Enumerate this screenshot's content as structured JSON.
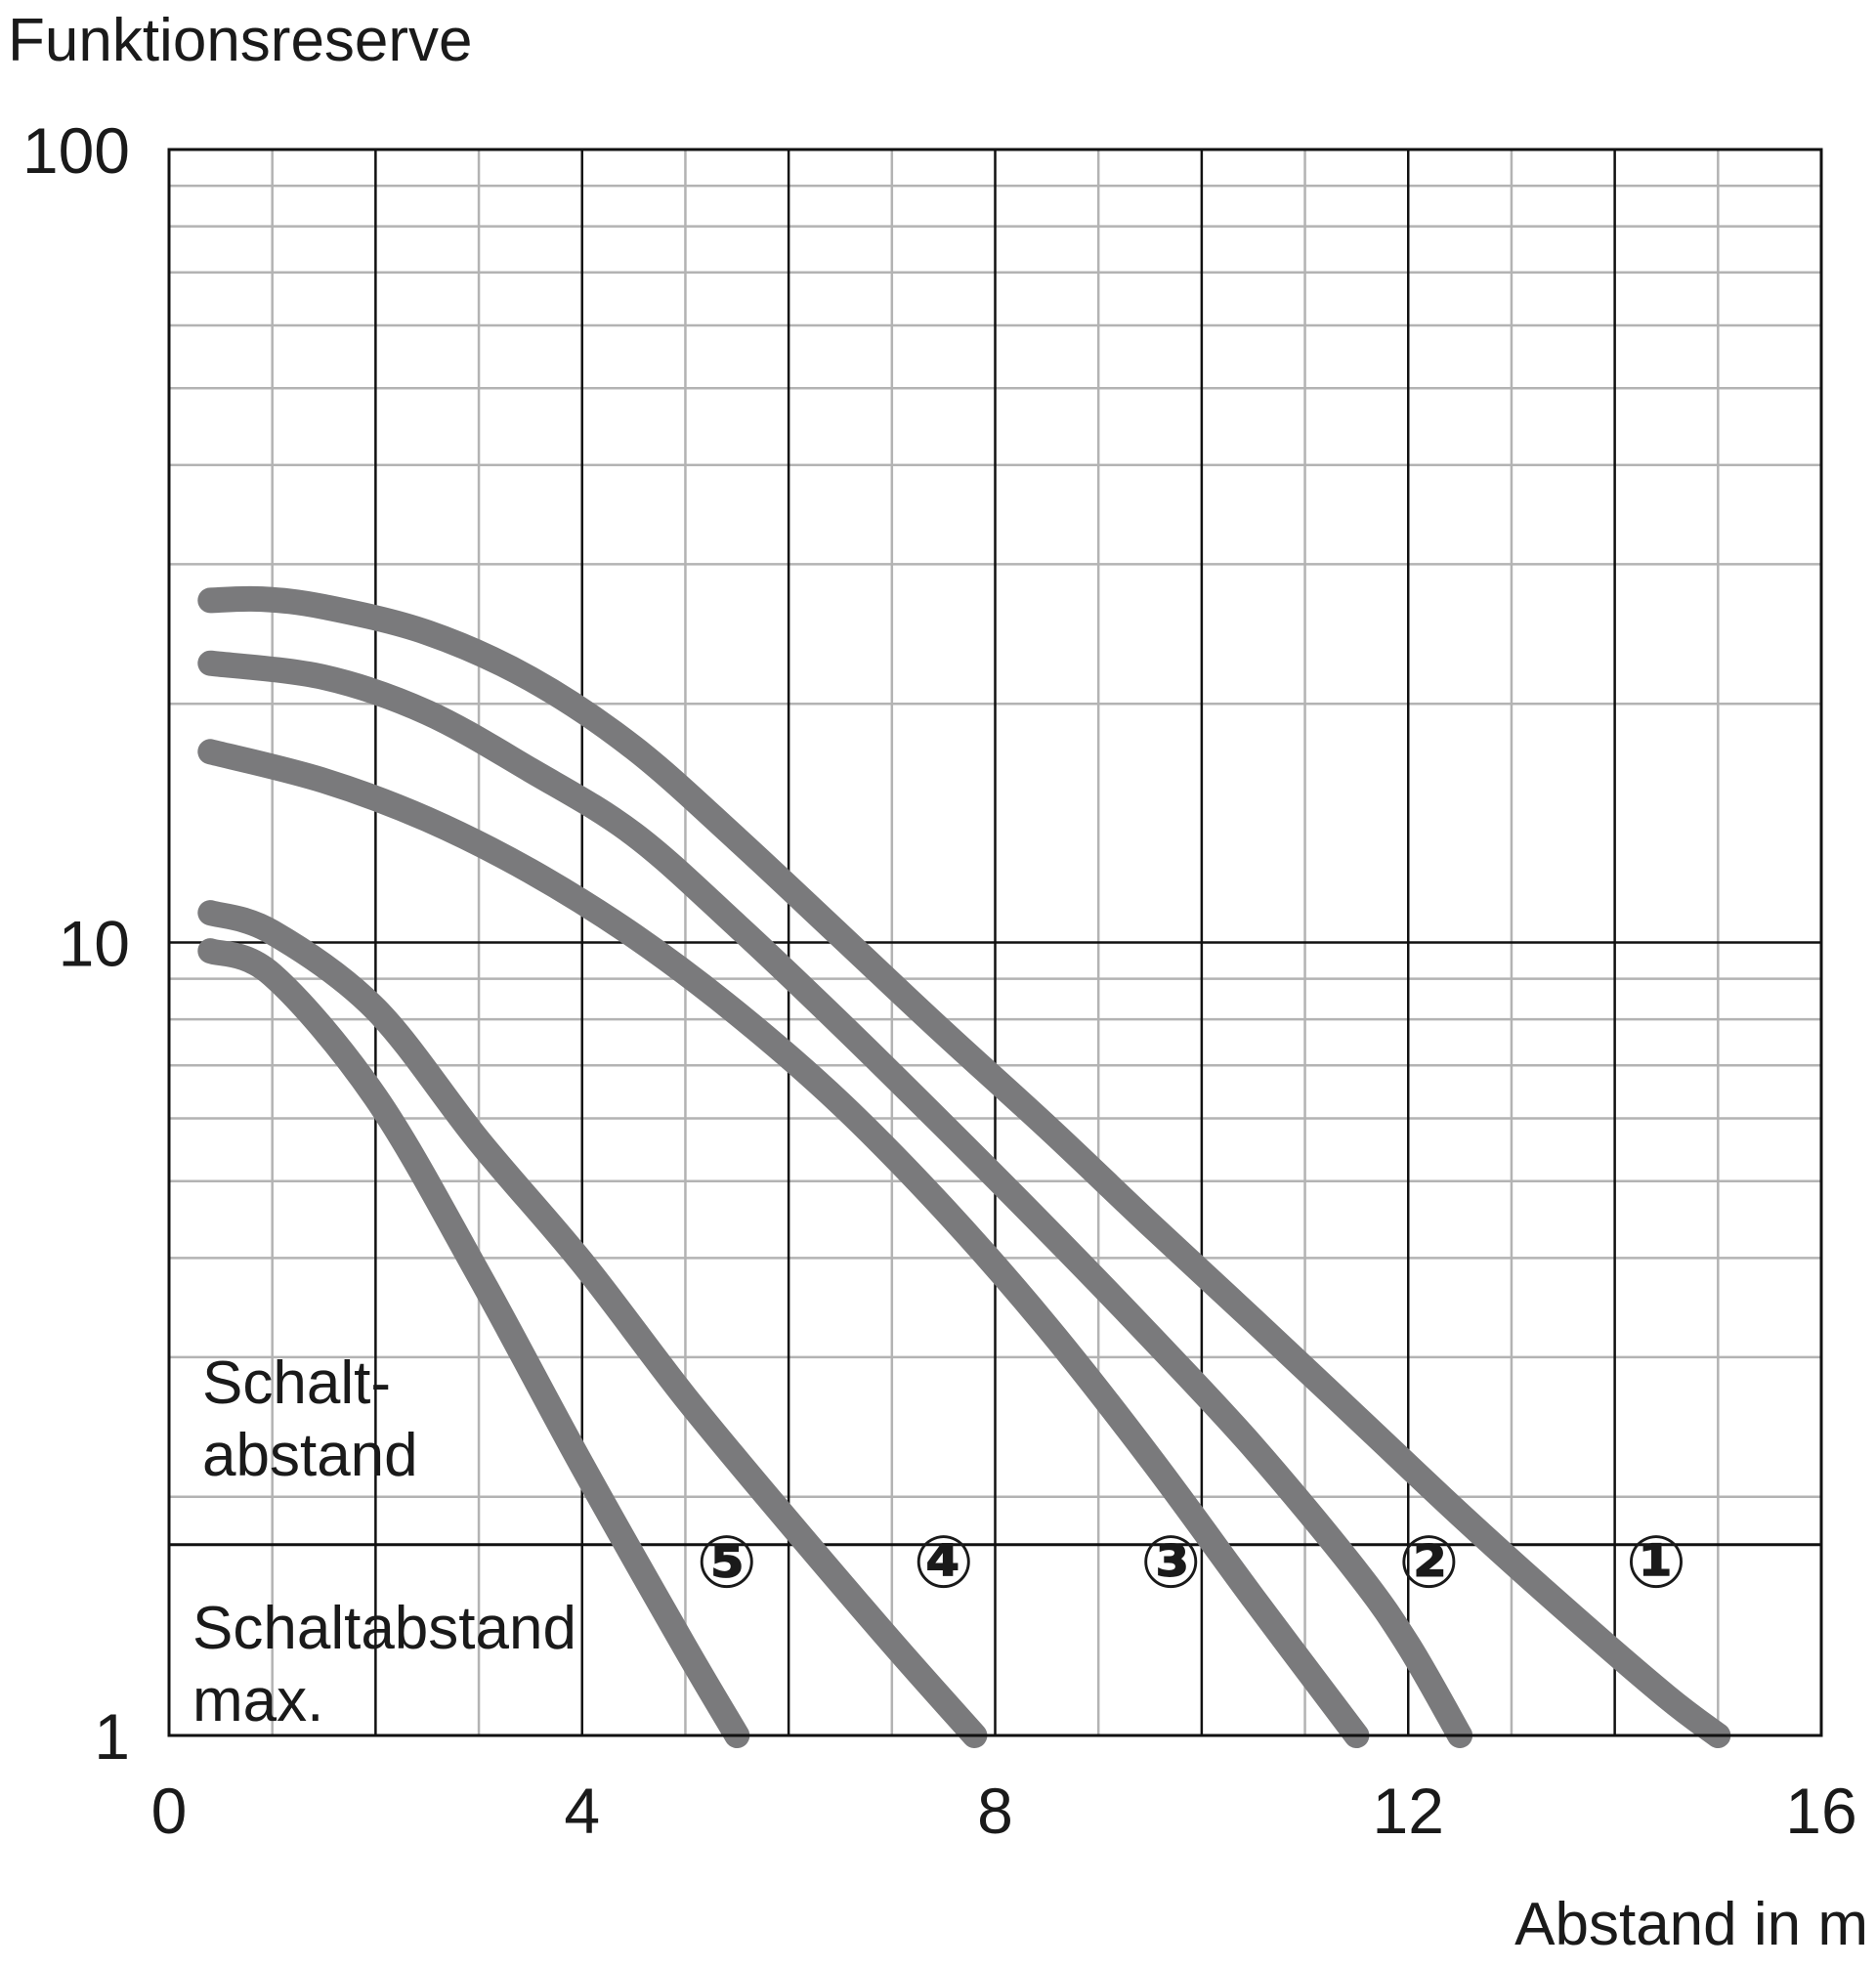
{
  "chart_data": {
    "type": "line",
    "title": "Funktionsreserve",
    "xlabel": "Abstand in m",
    "ylabel": "Funktionsreserve",
    "xlim": [
      0,
      16
    ],
    "ylim": [
      1,
      100
    ],
    "y_scale": "log",
    "grid": true,
    "x_ticks": [
      0,
      4,
      8,
      12,
      16
    ],
    "y_ticks": [
      1,
      10,
      100
    ],
    "x_tick_labels": [
      "0",
      "4",
      "8",
      "12",
      "16"
    ],
    "y_tick_labels": [
      "1",
      "10",
      "100"
    ],
    "threshold_line": {
      "y": 1.74
    },
    "annotations": {
      "schaltabstand": [
        "Schalt-",
        "abstand"
      ],
      "schaltabstand_max": [
        "Schaltabstand",
        "max."
      ]
    },
    "series": [
      {
        "marker": "①",
        "x": [
          0.4,
          0.9,
          1.5,
          2.5,
          3.5,
          4.5,
          5.5,
          6.5,
          7.5,
          8.5,
          9.5,
          10.5,
          11.5,
          12.5,
          13.5,
          14.5,
          15.0
        ],
        "y": [
          27,
          27.1,
          26.5,
          24.6,
          21.5,
          17.6,
          13.5,
          10.2,
          7.7,
          5.86,
          4.41,
          3.34,
          2.52,
          1.9,
          1.45,
          1.12,
          1.0
        ]
      },
      {
        "marker": "②",
        "x": [
          0.4,
          1.5,
          2.5,
          3.5,
          4.5,
          5.5,
          6.5,
          7.5,
          8.5,
          9.5,
          10.5,
          11.5,
          12.0,
          12.5
        ],
        "y": [
          22.5,
          21.6,
          19.5,
          16.5,
          13.7,
          10.5,
          7.9,
          5.88,
          4.35,
          3.19,
          2.31,
          1.61,
          1.3,
          1.0
        ]
      },
      {
        "marker": "③",
        "x": [
          0.4,
          1.5,
          2.5,
          3.5,
          4.5,
          5.5,
          6.5,
          7.5,
          8.5,
          9.5,
          10.5,
          11.5
        ],
        "y": [
          17.4,
          16.0,
          14.3,
          12.3,
          10.2,
          8.14,
          6.27,
          4.62,
          3.28,
          2.24,
          1.49,
          1.0
        ]
      },
      {
        "marker": "④",
        "x": [
          0.4,
          1.0,
          2.0,
          3.0,
          4.0,
          5.0,
          6.0,
          7.0,
          7.8
        ],
        "y": [
          10.9,
          10.3,
          8.24,
          5.62,
          3.95,
          2.67,
          1.86,
          1.31,
          1.0
        ]
      },
      {
        "marker": "⑤",
        "x": [
          0.4,
          1.0,
          2.0,
          3.0,
          4.0,
          5.0,
          5.5
        ],
        "y": [
          9.76,
          9.1,
          6.38,
          3.81,
          2.19,
          1.29,
          1.0
        ]
      }
    ]
  }
}
